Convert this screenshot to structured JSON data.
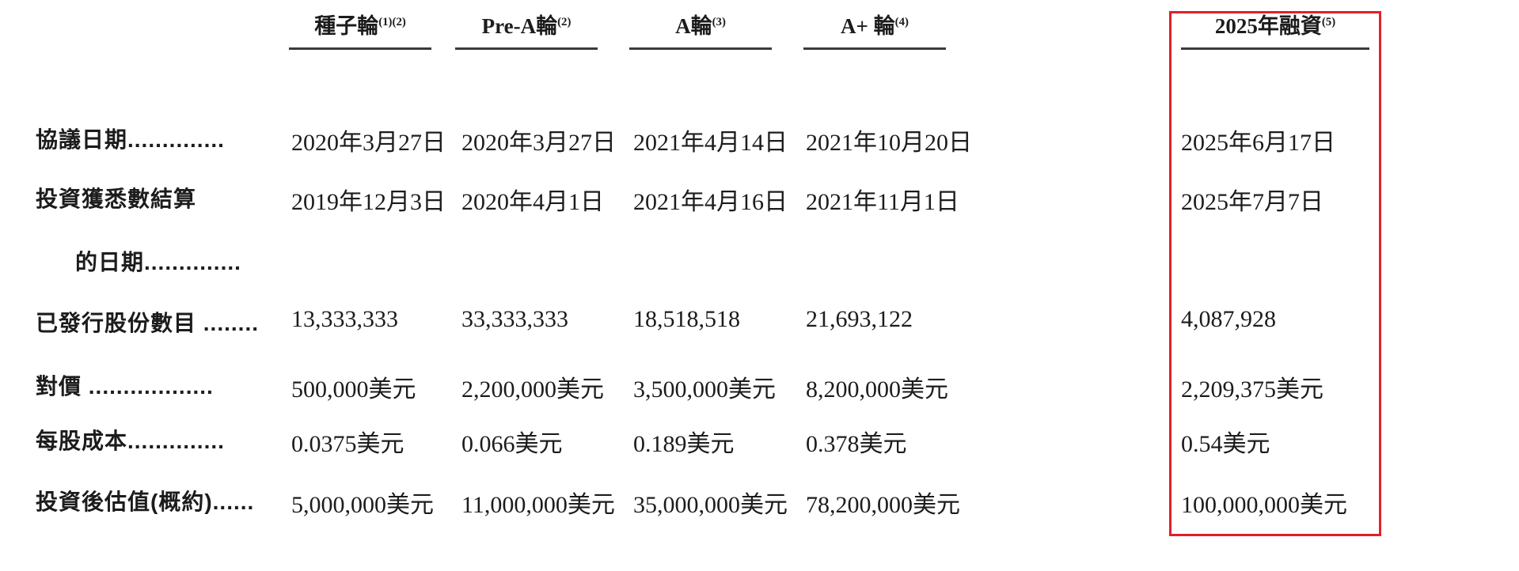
{
  "page": {
    "background_color": "#ffffff",
    "highlight_box_color": "#e02128"
  },
  "table": {
    "columns": [
      {
        "label": "種子輪",
        "note": "(1)(2)"
      },
      {
        "label": "Pre-A輪",
        "note": "(2)"
      },
      {
        "label": "A輪",
        "note": "(3)"
      },
      {
        "label": "A+ 輪",
        "note": "(4)"
      },
      {
        "label": "2025年融資",
        "note": "(5)",
        "highlighted": true
      }
    ],
    "rows": [
      {
        "label": "協議日期..............",
        "values": [
          "2020年3月27日",
          "2020年3月27日",
          "2021年4月14日",
          "2021年10月20日",
          "2025年6月17日"
        ]
      },
      {
        "label": "投資獲悉數結算",
        "label_line2": "的日期..............",
        "values": [
          "2019年12月3日",
          "2020年4月1日",
          "2021年4月16日",
          "2021年11月1日",
          "2025年7月7日"
        ]
      },
      {
        "label": "已發行股份數目 ........",
        "values": [
          "13,333,333",
          "33,333,333",
          "18,518,518",
          "21,693,122",
          "4,087,928"
        ]
      },
      {
        "label": "對價 ..................",
        "values": [
          "500,000美元",
          "2,200,000美元",
          "3,500,000美元",
          "8,200,000美元",
          "2,209,375美元"
        ]
      },
      {
        "label": "每股成本..............",
        "values": [
          "0.0375美元",
          "0.066美元",
          "0.189美元",
          "0.378美元",
          "0.54美元"
        ]
      },
      {
        "label": "投資後估值(概約)......",
        "values": [
          "5,000,000美元",
          "11,000,000美元",
          "35,000,000美元",
          "78,200,000美元",
          "100,000,000美元"
        ]
      }
    ]
  }
}
